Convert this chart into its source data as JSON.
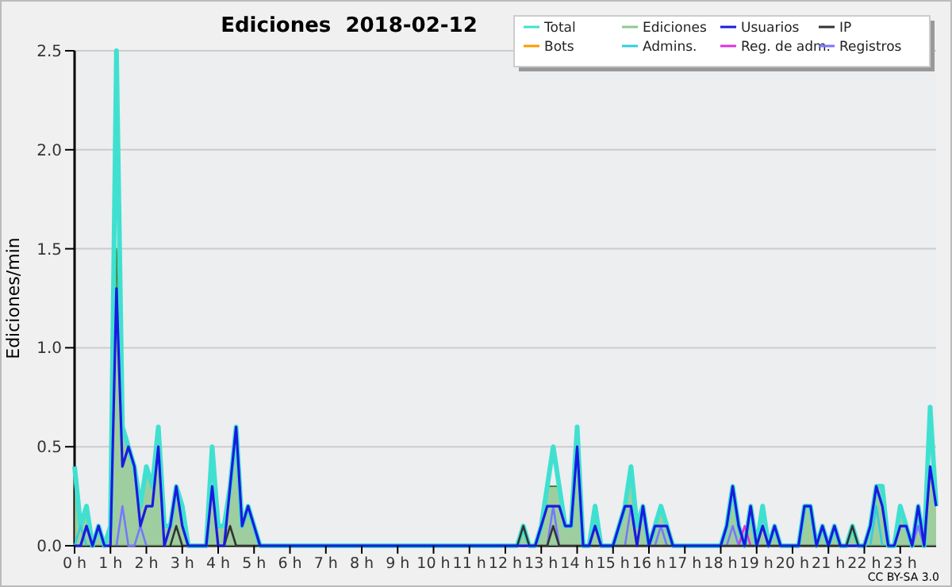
{
  "chart_data": {
    "type": "line",
    "title": "Ediciones  2018-02-12",
    "ylabel": "Ediciones/min",
    "x": [
      0,
      0.167,
      0.333,
      0.5,
      0.667,
      0.833,
      1,
      1.167,
      1.333,
      1.5,
      1.667,
      1.833,
      2,
      2.167,
      2.333,
      2.5,
      2.667,
      2.833,
      3,
      3.167,
      3.333,
      3.5,
      3.667,
      3.833,
      4,
      4.167,
      4.333,
      4.5,
      4.667,
      4.833,
      5,
      5.167,
      5.333,
      5.5,
      5.667,
      5.833,
      6,
      6.167,
      6.333,
      6.5,
      6.667,
      6.833,
      7,
      7.167,
      7.333,
      7.5,
      7.667,
      7.833,
      8,
      8.167,
      8.333,
      8.5,
      8.667,
      8.833,
      9,
      9.167,
      9.333,
      9.5,
      9.667,
      9.833,
      10,
      10.167,
      10.333,
      10.5,
      10.667,
      10.833,
      11,
      11.167,
      11.333,
      11.5,
      11.667,
      11.833,
      12,
      12.167,
      12.333,
      12.5,
      12.667,
      12.833,
      13,
      13.167,
      13.333,
      13.5,
      13.667,
      13.833,
      14,
      14.167,
      14.333,
      14.5,
      14.667,
      14.833,
      15,
      15.167,
      15.333,
      15.5,
      15.667,
      15.833,
      16,
      16.167,
      16.333,
      16.5,
      16.667,
      16.833,
      17,
      17.167,
      17.333,
      17.5,
      17.667,
      17.833,
      18,
      18.167,
      18.333,
      18.5,
      18.667,
      18.833,
      19,
      19.167,
      19.333,
      19.5,
      19.667,
      19.833,
      20,
      20.167,
      20.333,
      20.5,
      20.667,
      20.833,
      21,
      21.167,
      21.333,
      21.5,
      21.667,
      21.833,
      22,
      22.167,
      22.333,
      22.5,
      22.667,
      22.833,
      23,
      23.167,
      23.333,
      23.5,
      23.667,
      23.833,
      24
    ],
    "series": [
      {
        "name": "Ediciones",
        "type": "area",
        "color": "#90c890",
        "values": [
          0.4,
          0.1,
          0.2,
          0,
          0.1,
          0,
          0.1,
          1.5,
          0.6,
          0.5,
          0.4,
          0.2,
          0.4,
          0.3,
          0.6,
          0.1,
          0.1,
          0.3,
          0.2,
          0,
          0,
          0,
          0,
          0.3,
          0.1,
          0.1,
          0.3,
          0.6,
          0.1,
          0.2,
          0.1,
          0,
          0,
          0,
          0,
          0,
          0,
          0,
          0,
          0,
          0,
          0,
          0,
          0,
          0,
          0,
          0,
          0,
          0,
          0,
          0,
          0,
          0,
          0,
          0,
          0,
          0,
          0,
          0,
          0,
          0,
          0,
          0,
          0,
          0,
          0,
          0,
          0,
          0,
          0,
          0,
          0,
          0,
          0,
          0,
          0.1,
          0,
          0,
          0.1,
          0.3,
          0.3,
          0.3,
          0.1,
          0.1,
          0.6,
          0,
          0,
          0.2,
          0,
          0,
          0,
          0.1,
          0.2,
          0.4,
          0.1,
          0.2,
          0,
          0.1,
          0.2,
          0.1,
          0,
          0,
          0,
          0,
          0,
          0,
          0,
          0,
          0,
          0.1,
          0.3,
          0.1,
          0,
          0.2,
          0,
          0.2,
          0,
          0.1,
          0,
          0,
          0,
          0,
          0.2,
          0.2,
          0,
          0.1,
          0,
          0.1,
          0,
          0,
          0.1,
          0,
          0,
          0.1,
          0.3,
          0.3,
          0,
          0,
          0.2,
          0.1,
          0,
          0.2,
          0,
          0.4,
          0.2
        ]
      },
      {
        "name": "Total",
        "color": "#40e0d0",
        "values": [
          0.4,
          0.1,
          0.2,
          0,
          0.1,
          0,
          0.1,
          2.5,
          0.6,
          0.5,
          0.4,
          0.2,
          0.4,
          0.3,
          0.6,
          0.1,
          0.1,
          0.3,
          0.2,
          0,
          0,
          0,
          0,
          0.5,
          0.1,
          0.1,
          0.3,
          0.6,
          0.1,
          0.2,
          0.1,
          0,
          0,
          0,
          0,
          0,
          0,
          0,
          0,
          0,
          0,
          0,
          0,
          0,
          0,
          0,
          0,
          0,
          0,
          0,
          0,
          0,
          0,
          0,
          0,
          0,
          0,
          0,
          0,
          0,
          0,
          0,
          0,
          0,
          0,
          0,
          0,
          0,
          0,
          0,
          0,
          0,
          0,
          0,
          0,
          0.1,
          0,
          0,
          0.1,
          0.3,
          0.5,
          0.3,
          0.1,
          0.1,
          0.6,
          0,
          0,
          0.2,
          0,
          0,
          0,
          0.1,
          0.2,
          0.4,
          0.1,
          0.2,
          0,
          0.1,
          0.2,
          0.1,
          0,
          0,
          0,
          0,
          0,
          0,
          0,
          0,
          0,
          0.1,
          0.3,
          0.1,
          0,
          0.2,
          0,
          0.2,
          0,
          0.1,
          0,
          0,
          0,
          0,
          0.2,
          0.2,
          0,
          0.1,
          0,
          0.1,
          0,
          0,
          0.1,
          0,
          0,
          0.1,
          0.3,
          0.3,
          0,
          0,
          0.2,
          0.1,
          0,
          0.2,
          0,
          0.7,
          0.2
        ]
      },
      {
        "name": "Bots",
        "color": "#ff9900",
        "values": [
          null,
          null,
          null,
          null,
          null,
          null,
          null,
          null,
          null,
          null,
          null,
          null,
          null,
          null,
          null,
          null,
          null,
          null,
          null,
          null,
          null,
          null,
          null,
          null,
          null,
          null,
          null,
          null,
          null,
          null,
          null,
          null,
          null,
          null,
          null,
          null,
          null,
          null,
          null,
          null,
          null,
          null,
          null,
          null,
          null,
          null,
          null,
          null,
          null,
          null,
          null,
          null,
          null,
          null,
          null,
          null,
          null,
          null,
          null,
          null,
          null,
          null,
          null,
          null,
          null,
          null,
          null,
          null,
          null,
          null,
          null,
          null,
          null,
          null,
          null,
          null,
          null,
          null,
          null,
          null,
          null,
          null,
          null,
          null,
          null,
          null,
          null,
          null,
          null,
          null,
          null,
          null,
          null,
          null,
          null,
          null,
          null,
          null,
          null,
          null,
          null,
          null,
          null,
          null,
          null,
          null,
          null,
          null,
          null,
          null,
          null,
          null,
          null,
          null,
          null,
          null,
          null,
          null,
          null,
          null,
          null,
          null,
          null,
          null,
          null,
          null,
          null,
          null,
          null,
          null,
          null,
          null,
          null,
          null,
          null,
          null,
          null,
          null,
          null,
          null,
          null,
          null,
          null,
          null,
          null
        ]
      },
      {
        "name": "Admins.",
        "color": "#33ccdd",
        "values": [
          0,
          0.1,
          0,
          null,
          null,
          null,
          null,
          null,
          null,
          null,
          null,
          null,
          null,
          null,
          null,
          null,
          null,
          null,
          null,
          null,
          null,
          null,
          null,
          null,
          null,
          null,
          null,
          null,
          null,
          null,
          null,
          null,
          null,
          null,
          null,
          null,
          null,
          null,
          null,
          null,
          null,
          null,
          null,
          null,
          null,
          null,
          null,
          null,
          null,
          null,
          null,
          null,
          null,
          null,
          null,
          null,
          null,
          null,
          null,
          null,
          null,
          null,
          null,
          null,
          null,
          null,
          null,
          null,
          null,
          null,
          null,
          null,
          null,
          null,
          null,
          null,
          null,
          null,
          null,
          null,
          null,
          null,
          null,
          null,
          null,
          null,
          null,
          null,
          null,
          null,
          null,
          null,
          null,
          null,
          null,
          null,
          null,
          null,
          null,
          null,
          null,
          null,
          null,
          null,
          null,
          null,
          null,
          null,
          null,
          null,
          null,
          null,
          null,
          null,
          null,
          null,
          null,
          null,
          null,
          null,
          null,
          null,
          null,
          null,
          null,
          null,
          null,
          null,
          null,
          null,
          null,
          null,
          null,
          0,
          0.2,
          0,
          null,
          null,
          null,
          null,
          null,
          null,
          null,
          null,
          null
        ]
      },
      {
        "name": "Reg. de adm.",
        "color": "#dd33dd",
        "values": [
          null,
          null,
          null,
          null,
          null,
          null,
          null,
          null,
          null,
          null,
          null,
          null,
          null,
          null,
          null,
          null,
          null,
          null,
          null,
          null,
          null,
          null,
          null,
          null,
          null,
          null,
          null,
          null,
          null,
          null,
          null,
          null,
          null,
          null,
          null,
          null,
          null,
          null,
          null,
          null,
          null,
          null,
          null,
          null,
          null,
          null,
          null,
          null,
          null,
          null,
          null,
          null,
          null,
          null,
          null,
          null,
          null,
          null,
          null,
          null,
          null,
          null,
          null,
          null,
          null,
          null,
          null,
          null,
          null,
          null,
          null,
          null,
          null,
          null,
          null,
          null,
          null,
          null,
          null,
          null,
          null,
          null,
          null,
          null,
          null,
          null,
          null,
          null,
          null,
          null,
          null,
          null,
          null,
          null,
          null,
          null,
          null,
          null,
          null,
          null,
          null,
          null,
          null,
          null,
          null,
          null,
          null,
          null,
          null,
          null,
          null,
          0,
          0.1,
          0,
          null,
          null,
          null,
          null,
          null,
          null,
          null,
          null,
          null,
          null,
          null,
          null,
          null,
          null,
          null,
          null,
          null,
          null,
          null,
          null,
          null,
          null,
          null,
          null,
          null,
          null,
          null,
          null,
          null,
          null,
          null
        ]
      },
      {
        "name": "Registros",
        "color": "#7777ff",
        "values": [
          null,
          null,
          null,
          null,
          null,
          null,
          null,
          0,
          0.2,
          0,
          0,
          0.1,
          0,
          null,
          null,
          null,
          null,
          null,
          null,
          null,
          null,
          null,
          null,
          null,
          null,
          null,
          null,
          null,
          null,
          null,
          null,
          null,
          null,
          null,
          null,
          null,
          null,
          null,
          null,
          null,
          null,
          null,
          null,
          null,
          null,
          null,
          null,
          null,
          null,
          null,
          null,
          null,
          null,
          null,
          null,
          null,
          null,
          null,
          null,
          null,
          null,
          null,
          null,
          null,
          null,
          null,
          null,
          null,
          null,
          null,
          null,
          null,
          null,
          null,
          null,
          null,
          null,
          null,
          null,
          0,
          0.2,
          0,
          null,
          null,
          null,
          null,
          null,
          null,
          null,
          null,
          null,
          null,
          0,
          0.2,
          0,
          null,
          null,
          0,
          0.1,
          0,
          null,
          null,
          null,
          null,
          null,
          null,
          null,
          null,
          null,
          0,
          0.1,
          0,
          null,
          null,
          null,
          null,
          null,
          null,
          null,
          null,
          null,
          null,
          null,
          null,
          null,
          null,
          null,
          null,
          null,
          null,
          null,
          null,
          null,
          null,
          null,
          null,
          null,
          null,
          null,
          null,
          0,
          0.1,
          0,
          null,
          null
        ]
      },
      {
        "name": "IP",
        "color": "#333333",
        "x": [
          2.667,
          2.833,
          3,
          4.167,
          4.333,
          4.5,
          12.333,
          12.5,
          12.667,
          13.167,
          13.333,
          13.5,
          21.5,
          21.667,
          21.833
        ],
        "values": [
          0,
          0.1,
          0,
          0,
          0.1,
          0,
          0,
          0.1,
          0,
          0,
          0.1,
          0,
          0,
          0.1,
          0
        ]
      },
      {
        "name": "Usuarios",
        "color": "#1a1ae0",
        "values": [
          0,
          0,
          0.1,
          0,
          0.1,
          0,
          0,
          1.3,
          0.4,
          0.5,
          0.4,
          0.1,
          0.2,
          0.2,
          0.5,
          0,
          0.1,
          0.3,
          0.1,
          0,
          0,
          0,
          0,
          0.3,
          0,
          0,
          0.3,
          0.6,
          0.1,
          0.2,
          0.1,
          0,
          0,
          0,
          0,
          0,
          0,
          0,
          0,
          0,
          0,
          0,
          0,
          0,
          0,
          0,
          0,
          0,
          0,
          0,
          0,
          0,
          0,
          0,
          0,
          0,
          0,
          0,
          0,
          0,
          0,
          0,
          0,
          0,
          0,
          0,
          0,
          0,
          0,
          0,
          0,
          0,
          0,
          0,
          0,
          0,
          0,
          0,
          0.1,
          0.2,
          0.2,
          0.2,
          0.1,
          0.1,
          0.5,
          0,
          0,
          0.1,
          0,
          0,
          0,
          0.1,
          0.2,
          0.2,
          0,
          0.2,
          0,
          0.1,
          0.1,
          0.1,
          0,
          0,
          0,
          0,
          0,
          0,
          0,
          0,
          0,
          0.1,
          0.3,
          0.1,
          0,
          0.2,
          0,
          0.1,
          0,
          0.1,
          0,
          0,
          0,
          0,
          0.2,
          0.2,
          0,
          0.1,
          0,
          0.1,
          0,
          0,
          0,
          0,
          0,
          0.1,
          0.3,
          0.2,
          0,
          0,
          0.1,
          0.1,
          0,
          0.2,
          0,
          0.4,
          0.2
        ]
      }
    ],
    "xlim": [
      0,
      24
    ],
    "xticks": [
      {
        "value": 0,
        "label": "0 h"
      },
      {
        "value": 1,
        "label": "1 h"
      },
      {
        "value": 2,
        "label": "2 h"
      },
      {
        "value": 3,
        "label": "3 h"
      },
      {
        "value": 4,
        "label": "4 h"
      },
      {
        "value": 5,
        "label": "5 h"
      },
      {
        "value": 6,
        "label": "6 h"
      },
      {
        "value": 7,
        "label": "7 h"
      },
      {
        "value": 8,
        "label": "8 h"
      },
      {
        "value": 9,
        "label": "9 h"
      },
      {
        "value": 10,
        "label": "10 h"
      },
      {
        "value": 11,
        "label": "11 h"
      },
      {
        "value": 12,
        "label": "12 h"
      },
      {
        "value": 13,
        "label": "13 h"
      },
      {
        "value": 14,
        "label": "14 h"
      },
      {
        "value": 15,
        "label": "15 h"
      },
      {
        "value": 16,
        "label": "16 h"
      },
      {
        "value": 17,
        "label": "17 h"
      },
      {
        "value": 18,
        "label": "18 h"
      },
      {
        "value": 19,
        "label": "19 h"
      },
      {
        "value": 20,
        "label": "20 h"
      },
      {
        "value": 21,
        "label": "21 h"
      },
      {
        "value": 22,
        "label": "22 h"
      },
      {
        "value": 23,
        "label": "23 h"
      }
    ],
    "ylim": [
      0,
      2.5
    ],
    "yticks": [
      {
        "value": 0,
        "label": "0.0"
      },
      {
        "value": 0.5,
        "label": "0.5"
      },
      {
        "value": 1,
        "label": "1.0"
      },
      {
        "value": 1.5,
        "label": "1.5"
      },
      {
        "value": 2,
        "label": "2.0"
      },
      {
        "value": 2.5,
        "label": "2.5"
      }
    ],
    "grid": "y",
    "legend": "top right",
    "marker": "none",
    "line_style": "solid",
    "annotations": [
      "CC BY-SA 3.0"
    ]
  }
}
